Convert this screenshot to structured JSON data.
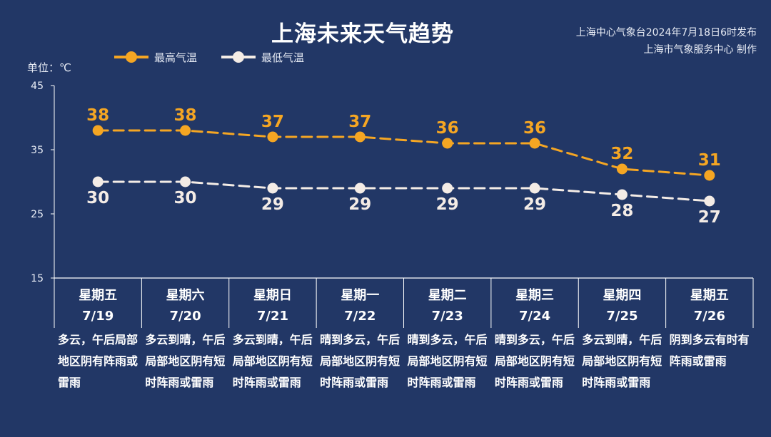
{
  "header": {
    "title": "上海未来天气趋势",
    "source_line1": "上海中心气象台2024年7月18日6时发布",
    "source_line2": "上海市气象服务中心 制作"
  },
  "chart_data": {
    "type": "line",
    "unit_label": "单位：℃",
    "categories": [
      "7/19",
      "7/20",
      "7/21",
      "7/22",
      "7/23",
      "7/24",
      "7/25",
      "7/26"
    ],
    "weekdays": [
      "星期五",
      "星期六",
      "星期日",
      "星期一",
      "星期二",
      "星期三",
      "星期四",
      "星期五"
    ],
    "y_ticks": [
      "45",
      "35",
      "25",
      "15"
    ],
    "ylim": [
      15,
      45
    ],
    "series": [
      {
        "name": "最高气温",
        "color": "#f5a623",
        "values": [
          38,
          38,
          37,
          37,
          36,
          36,
          32,
          31
        ]
      },
      {
        "name": "最低气温",
        "color": "#f4ece6",
        "values": [
          30,
          30,
          29,
          29,
          29,
          29,
          28,
          27
        ]
      }
    ],
    "descriptions": [
      "多云，午后局部地区阴有阵雨或雷雨",
      "多云到晴，午后局部地区阴有短时阵雨或雷雨",
      "多云到晴，午后局部地区阴有短时阵雨或雷雨",
      "晴到多云，午后局部地区阴有短时阵雨或雷雨",
      "晴到多云，午后局部地区阴有短时阵雨或雷雨",
      "晴到多云，午后局部地区阴有短时阵雨或雷雨",
      "多云到晴，午后局部地区阴有短时阵雨或雷雨",
      "阴到多云有时有阵雨或雷雨"
    ],
    "grid": false,
    "legend_position": "top-left"
  }
}
